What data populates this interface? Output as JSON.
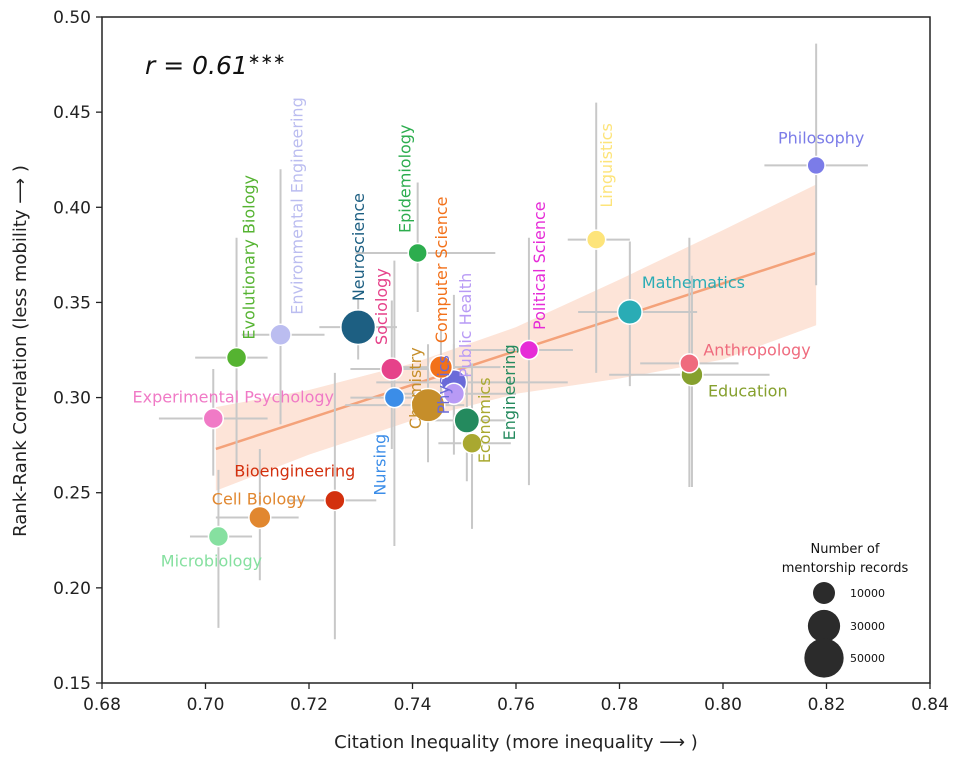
{
  "chart_data": {
    "type": "scatter",
    "xlabel": "Citation Inequality (more inequality ⟶ )",
    "ylabel": "Rank-Rank Correlation (less mobility ⟶ )",
    "xlim": [
      0.68,
      0.84
    ],
    "ylim": [
      0.15,
      0.5
    ],
    "xticks": [
      "0.68",
      "0.70",
      "0.72",
      "0.74",
      "0.76",
      "0.78",
      "0.80",
      "0.82",
      "0.84"
    ],
    "yticks": [
      "0.15",
      "0.20",
      "0.25",
      "0.30",
      "0.35",
      "0.40",
      "0.45",
      "0.50"
    ],
    "annotation": {
      "prefix": "r = 0.61",
      "sup": "∗∗∗"
    },
    "fit": {
      "x": [
        0.702,
        0.818
      ],
      "y": [
        0.273,
        0.376
      ],
      "band_x": [
        0.702,
        0.72,
        0.74,
        0.76,
        0.78,
        0.8,
        0.818
      ],
      "band_upper": [
        0.295,
        0.304,
        0.318,
        0.337,
        0.362,
        0.388,
        0.412
      ],
      "band_lower": [
        0.251,
        0.27,
        0.288,
        0.302,
        0.31,
        0.32,
        0.338
      ]
    },
    "colors": {
      "fit_line": "#f4a27a",
      "band": "#fde4d8",
      "error_bar": "#c8c8c8"
    },
    "points": [
      {
        "name": "Philosophy",
        "x": 0.818,
        "y": 0.422,
        "size": 8000,
        "color": "#7b7ce8",
        "xerr": [
          0.808,
          0.828
        ],
        "yerr": [
          0.359,
          0.486
        ],
        "orient": "h"
      },
      {
        "name": "Linguistics",
        "x": 0.7755,
        "y": 0.383,
        "size": 9000,
        "color": "#fde47a",
        "xerr": [
          0.77,
          0.782
        ],
        "yerr": [
          0.313,
          0.455
        ],
        "orient": "v"
      },
      {
        "name": "Mathematics",
        "x": 0.782,
        "y": 0.345,
        "size": 15000,
        "color": "#2aacb5",
        "xerr": [
          0.772,
          0.795
        ],
        "yerr": [
          0.306,
          0.382
        ],
        "orient": "h"
      },
      {
        "name": "Anthropology",
        "x": 0.7935,
        "y": 0.318,
        "size": 9000,
        "color": "#ef6b7e",
        "xerr": [
          0.784,
          0.803
        ],
        "yerr": [
          0.253,
          0.384
        ],
        "orient": "h"
      },
      {
        "name": "Education",
        "x": 0.794,
        "y": 0.312,
        "size": 12000,
        "color": "#86a02e",
        "xerr": [
          0.778,
          0.809
        ],
        "yerr": [
          0.253,
          0.364
        ],
        "orient": "h"
      },
      {
        "name": "Political Science",
        "x": 0.7625,
        "y": 0.325,
        "size": 9000,
        "color": "#e62bd7",
        "xerr": [
          0.751,
          0.771
        ],
        "yerr": [
          0.254,
          0.384
        ],
        "orient": "v"
      },
      {
        "name": "Engineering",
        "x": 0.7505,
        "y": 0.288,
        "size": 16000,
        "color": "#248a5e",
        "xerr": [
          0.743,
          0.758
        ],
        "yerr": [
          0.256,
          0.313
        ],
        "orient": "v"
      },
      {
        "name": "Economics",
        "x": 0.7515,
        "y": 0.276,
        "size": 10000,
        "color": "#a9a830",
        "xerr": [
          0.745,
          0.759
        ],
        "yerr": [
          0.231,
          0.318
        ],
        "orient": "v"
      },
      {
        "name": "Public Health",
        "x": 0.748,
        "y": 0.302,
        "size": 11000,
        "color": "#b89af5",
        "xerr": [
          0.737,
          0.76
        ],
        "yerr": [
          0.27,
          0.354
        ],
        "orient": "v"
      },
      {
        "name": "Physics",
        "x": 0.748,
        "y": 0.308,
        "size": 16000,
        "color": "#6a6ad8",
        "xerr": [
          0.733,
          0.77
        ],
        "yerr": [
          0.283,
          0.328
        ],
        "orient": "v"
      },
      {
        "name": "Epidemiology",
        "x": 0.741,
        "y": 0.376,
        "size": 9000,
        "color": "#2cad4e",
        "xerr": [
          0.729,
          0.756
        ],
        "yerr": [
          0.345,
          0.413
        ],
        "orient": "v"
      },
      {
        "name": "Computer Science",
        "x": 0.7455,
        "y": 0.316,
        "size": 13000,
        "color": "#f2711a",
        "xerr": [
          0.734,
          0.757
        ],
        "yerr": [
          0.294,
          0.336
        ],
        "orient": "v"
      },
      {
        "name": "Chemistry",
        "x": 0.743,
        "y": 0.296,
        "size": 28000,
        "color": "#c68e2a",
        "xerr": [
          0.727,
          0.75
        ],
        "yerr": [
          0.266,
          0.328
        ],
        "orient": "v"
      },
      {
        "name": "Neuroscience",
        "x": 0.7295,
        "y": 0.337,
        "size": 30000,
        "color": "#1d5f82",
        "xerr": [
          0.722,
          0.737
        ],
        "yerr": [
          0.32,
          0.352
        ],
        "orient": "v"
      },
      {
        "name": "Sociology",
        "x": 0.736,
        "y": 0.315,
        "size": 12000,
        "color": "#e6428a",
        "xerr": [
          0.728,
          0.745
        ],
        "yerr": [
          0.273,
          0.351
        ],
        "orient": "v"
      },
      {
        "name": "Nursing",
        "x": 0.7365,
        "y": 0.3,
        "size": 10000,
        "color": "#3b8de8",
        "xerr": [
          0.728,
          0.745
        ],
        "yerr": [
          0.222,
          0.372
        ],
        "orient": "v"
      },
      {
        "name": "Environmental Engineering",
        "x": 0.7145,
        "y": 0.333,
        "size": 11000,
        "color": "#bbbdf0",
        "xerr": [
          0.707,
          0.723
        ],
        "yerr": [
          0.286,
          0.42
        ],
        "orient": "v"
      },
      {
        "name": "Evolutionary Biology",
        "x": 0.706,
        "y": 0.321,
        "size": 10000,
        "color": "#55b331",
        "xerr": [
          0.698,
          0.712
        ],
        "yerr": [
          0.259,
          0.384
        ],
        "orient": "v"
      },
      {
        "name": "Experimental Psychology",
        "x": 0.7015,
        "y": 0.289,
        "size": 10000,
        "color": "#f07ac6",
        "xerr": [
          0.691,
          0.712
        ],
        "yerr": [
          0.259,
          0.315
        ],
        "orient": "h"
      },
      {
        "name": "Bioengineering",
        "x": 0.725,
        "y": 0.246,
        "size": 10000,
        "color": "#d3300e",
        "xerr": [
          0.716,
          0.733
        ],
        "yerr": [
          0.173,
          0.313
        ],
        "orient": "h"
      },
      {
        "name": "Cell Biology",
        "x": 0.7105,
        "y": 0.237,
        "size": 12000,
        "color": "#e1872f",
        "xerr": [
          0.702,
          0.718
        ],
        "yerr": [
          0.204,
          0.273
        ],
        "orient": "h"
      },
      {
        "name": "Microbiology",
        "x": 0.7025,
        "y": 0.227,
        "size": 10000,
        "color": "#86e0a0",
        "xerr": [
          0.697,
          0.709
        ],
        "yerr": [
          0.179,
          0.262
        ],
        "orient": "h"
      }
    ],
    "legend": {
      "title_line1": "Number of",
      "title_line2": "mentorship records",
      "placement": "bottom-right",
      "entries": [
        {
          "label": "10000",
          "size": 10000
        },
        {
          "label": "30000",
          "size": 30000
        },
        {
          "label": "50000",
          "size": 50000
        }
      ]
    }
  }
}
